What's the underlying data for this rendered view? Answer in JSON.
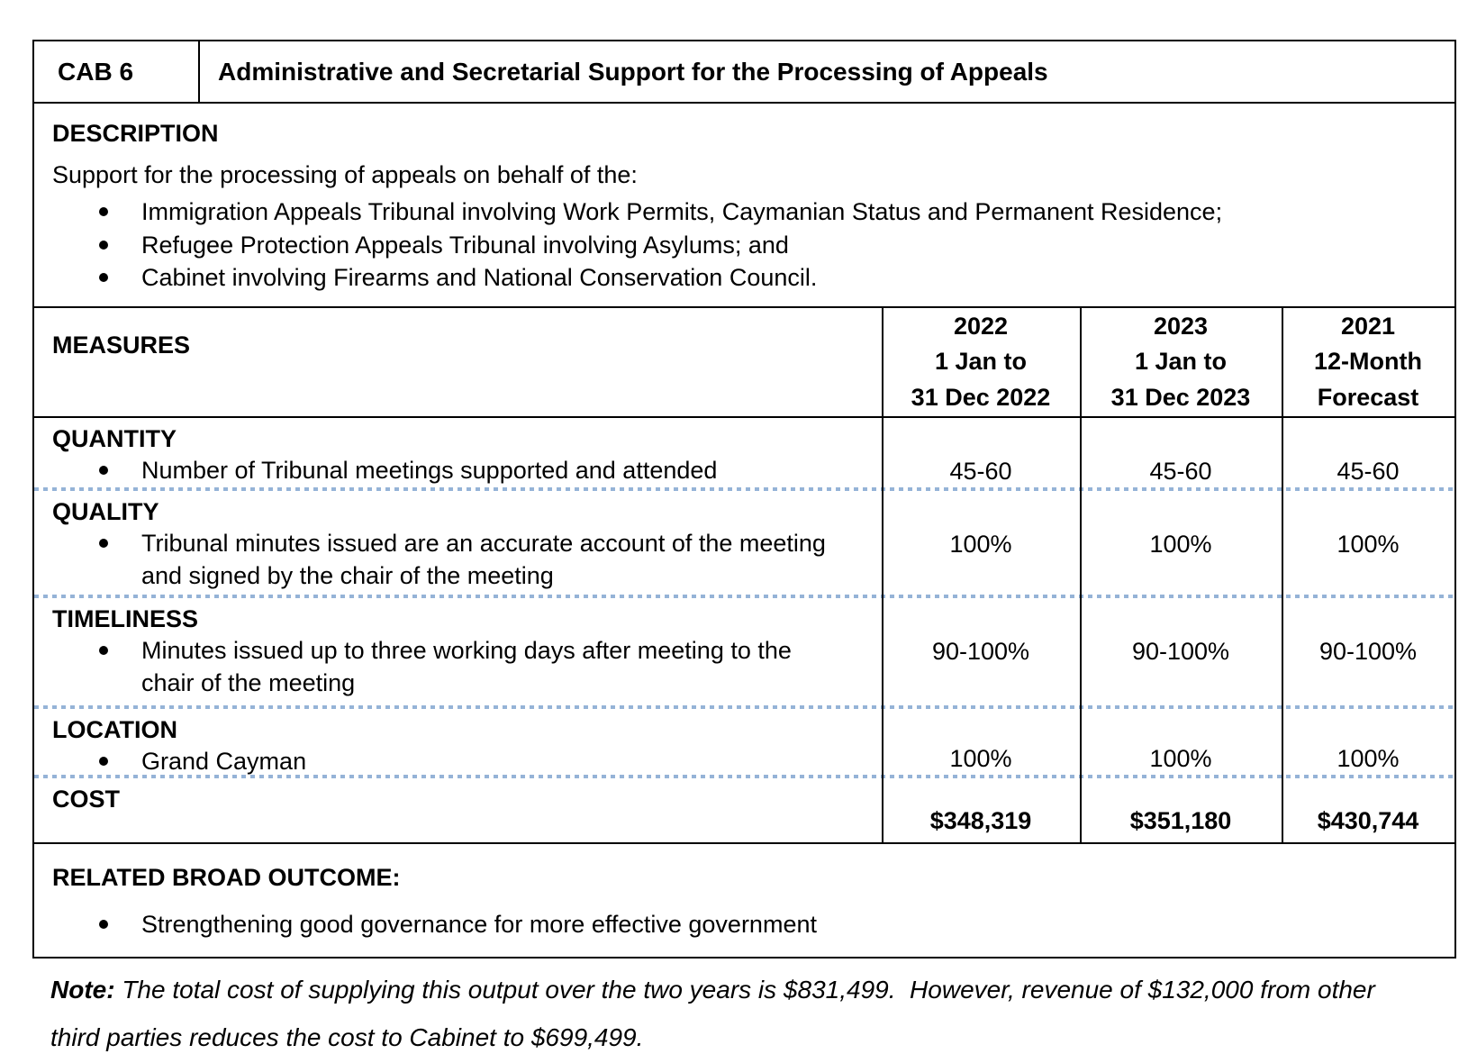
{
  "header": {
    "code": "CAB 6",
    "title": "Administrative and Secretarial Support for the Processing of Appeals"
  },
  "description": {
    "heading": "DESCRIPTION",
    "intro": "Support for the processing of appeals on behalf of the:",
    "bullets": [
      "Immigration Appeals Tribunal involving Work Permits, Caymanian Status and Permanent Residence;",
      "Refugee Protection Appeals Tribunal involving Asylums; and",
      "Cabinet involving Firearms and National Conservation Council."
    ]
  },
  "measures": {
    "heading": "MEASURES",
    "columns": [
      {
        "line1": "2022",
        "line2": "1 Jan to",
        "line3": "31 Dec 2022"
      },
      {
        "line1": "2023",
        "line2": "1 Jan to",
        "line3": "31 Dec 2023"
      },
      {
        "line1": "2021",
        "line2": "12-Month",
        "line3": "Forecast"
      }
    ],
    "rows": [
      {
        "category": "QUANTITY",
        "item": "Number of Tribunal meetings supported and attended",
        "values": [
          "45-60",
          "45-60",
          "45-60"
        ]
      },
      {
        "category": "QUALITY",
        "item": "Tribunal minutes issued are an accurate account of the meeting and signed by the chair of the meeting",
        "values": [
          "100%",
          "100%",
          "100%"
        ]
      },
      {
        "category": "TIMELINESS",
        "item": "Minutes issued up to three working days after meeting to the chair of the meeting",
        "values": [
          "90-100%",
          "90-100%",
          "90-100%"
        ]
      },
      {
        "category": "LOCATION",
        "item": "Grand Cayman",
        "values": [
          "100%",
          "100%",
          "100%"
        ]
      },
      {
        "category": "COST",
        "item": "",
        "values": [
          "$348,319",
          "$351,180",
          "$430,744"
        ]
      }
    ]
  },
  "outcome": {
    "heading": "RELATED BROAD OUTCOME:",
    "bullets": [
      "Strengthening good governance for more effective government"
    ]
  },
  "note": {
    "label": "Note:",
    "text": "The total cost of supplying this output over the two years is $831,499.  However, revenue of $132,000 from other third parties reduces the cost to Cabinet to $699,499."
  },
  "colors": {
    "border": "#000000",
    "dotted_separator": "#95b3d7",
    "background": "#ffffff",
    "text": "#000000"
  }
}
